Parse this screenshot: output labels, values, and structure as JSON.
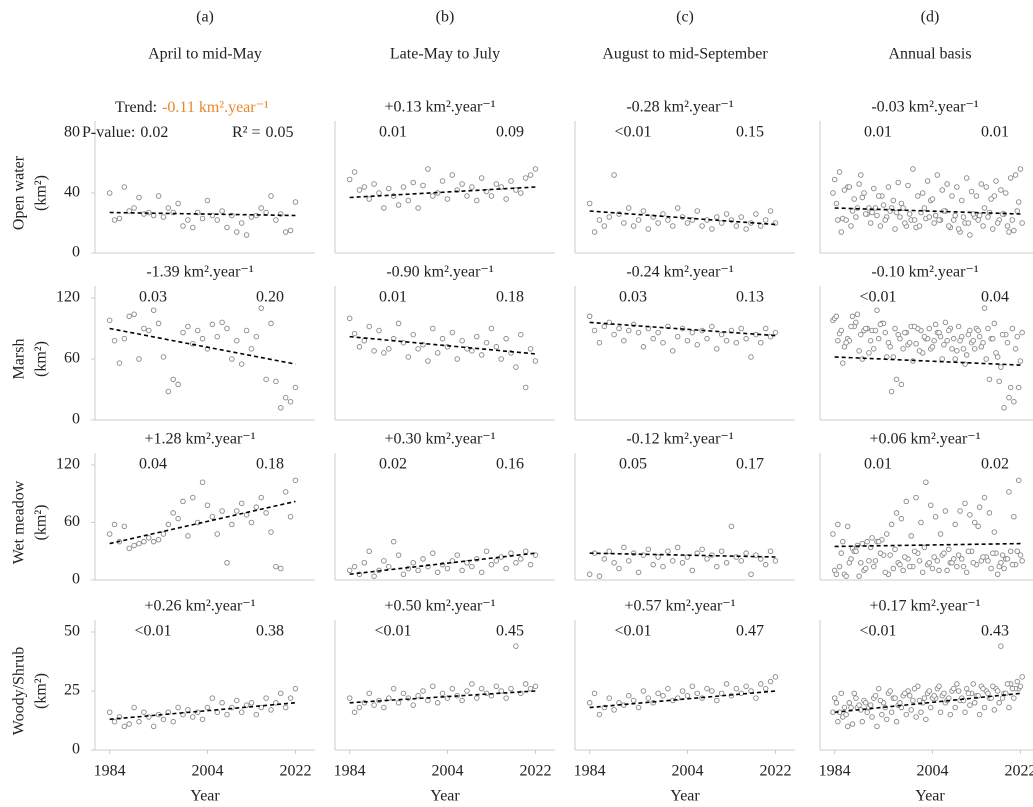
{
  "chart_data": {
    "type": "scatter",
    "x": [
      1984,
      1985,
      1986,
      1987,
      1988,
      1989,
      1990,
      1991,
      1992,
      1993,
      1994,
      1995,
      1996,
      1997,
      1998,
      1999,
      2000,
      2001,
      2002,
      2003,
      2004,
      2005,
      2006,
      2007,
      2008,
      2009,
      2010,
      2011,
      2012,
      2013,
      2014,
      2015,
      2016,
      2017,
      2018,
      2019,
      2020,
      2021,
      2022
    ],
    "xlim": [
      1981,
      2026
    ],
    "xticks": [
      1984,
      2004,
      2022
    ],
    "xlabel": "Year",
    "labels": {
      "trend": "Trend:",
      "p": "P-value:",
      "r2": "R² ="
    },
    "columns": [
      {
        "letter": "(a)",
        "title": "April to mid-May"
      },
      {
        "letter": "(b)",
        "title": "Late-May to July"
      },
      {
        "letter": "(c)",
        "title": "August to mid-September"
      },
      {
        "letter": "(d)",
        "title": "Annual basis"
      }
    ],
    "rows": [
      {
        "label": "Open water",
        "unit": "(km²)",
        "ylim": [
          0,
          80
        ],
        "yticks": [
          0,
          40,
          80
        ]
      },
      {
        "label": "Marsh",
        "unit": "(km²)",
        "ylim": [
          0,
          120
        ],
        "yticks": [
          0,
          60,
          120
        ]
      },
      {
        "label": "Wet meadow",
        "unit": "(km²)",
        "ylim": [
          0,
          120
        ],
        "yticks": [
          0,
          60,
          120
        ]
      },
      {
        "label": "Woody/Shrub",
        "unit": "(km²)",
        "ylim": [
          0,
          50
        ],
        "yticks": [
          0,
          25,
          50
        ]
      }
    ],
    "point_color": "#888888",
    "trend_line_color": "#000000",
    "panels": [
      {
        "trend": "-0.11 km².year⁻¹",
        "trend_color": "#e8872c",
        "p": "0.02",
        "r2": "0.05",
        "trend_line": [
          27,
          25
        ],
        "values": [
          40,
          22,
          23,
          44,
          28,
          30,
          37,
          26,
          27,
          25,
          38,
          24,
          30,
          27,
          33,
          18,
          22,
          17,
          27,
          23,
          35,
          25,
          22,
          28,
          17,
          25,
          14,
          20,
          12,
          24,
          25,
          30,
          27,
          38,
          22,
          26,
          14,
          15,
          34
        ]
      },
      {
        "trend": "+0.13 km².year⁻¹",
        "trend_color": "#2ea24a",
        "p": "0.01",
        "r2": "0.09",
        "trend_line": [
          37,
          44
        ],
        "values": [
          49,
          54,
          42,
          44,
          36,
          46,
          40,
          30,
          43,
          38,
          32,
          44,
          35,
          47,
          30,
          45,
          56,
          38,
          40,
          48,
          36,
          52,
          42,
          46,
          38,
          44,
          35,
          50,
          41,
          38,
          46,
          44,
          36,
          48,
          42,
          40,
          50,
          52,
          56
        ]
      },
      {
        "trend": "-0.28 km².year⁻¹",
        "trend_color": "#e8872c",
        "p": "<0.01",
        "r2": "0.15",
        "trend_line": [
          28,
          19
        ],
        "values": [
          33,
          14,
          22,
          18,
          24,
          52,
          26,
          20,
          30,
          18,
          22,
          28,
          16,
          24,
          20,
          26,
          22,
          18,
          30,
          24,
          20,
          22,
          28,
          18,
          22,
          16,
          24,
          20,
          26,
          22,
          18,
          24,
          16,
          20,
          26,
          18,
          22,
          28,
          20
        ]
      },
      {
        "trend": "-0.03 km².year⁻¹",
        "trend_color": "#e8872c",
        "p": "0.01",
        "r2": "0.01",
        "trend_line": [
          30,
          26
        ]
      },
      {
        "trend": "-1.39 km².year⁻¹",
        "trend_color": "#e8872c",
        "p": "0.03",
        "r2": "0.20",
        "trend_line": [
          90,
          55
        ],
        "values": [
          98,
          78,
          56,
          80,
          102,
          104,
          60,
          90,
          88,
          108,
          95,
          62,
          28,
          40,
          35,
          86,
          92,
          75,
          88,
          80,
          70,
          94,
          82,
          96,
          90,
          60,
          78,
          55,
          88,
          70,
          82,
          110,
          40,
          95,
          38,
          12,
          22,
          18,
          32
        ]
      },
      {
        "trend": "-0.90 km².year⁻¹",
        "trend_color": "#e8872c",
        "p": "0.01",
        "r2": "0.18",
        "trend_line": [
          82,
          65
        ],
        "values": [
          100,
          85,
          72,
          78,
          92,
          68,
          88,
          66,
          70,
          80,
          95,
          76,
          62,
          84,
          70,
          74,
          58,
          90,
          66,
          80,
          72,
          86,
          60,
          78,
          70,
          68,
          82,
          64,
          76,
          90,
          72,
          60,
          80,
          66,
          52,
          84,
          32,
          70,
          58
        ]
      },
      {
        "trend": "-0.24 km².year⁻¹",
        "trend_color": "#e8872c",
        "p": "0.03",
        "r2": "0.13",
        "trend_line": [
          96,
          83
        ],
        "values": [
          102,
          88,
          76,
          92,
          96,
          84,
          90,
          78,
          88,
          94,
          86,
          72,
          90,
          80,
          86,
          76,
          92,
          68,
          82,
          90,
          78,
          86,
          74,
          88,
          80,
          92,
          70,
          84,
          78,
          88,
          76,
          90,
          80,
          62,
          84,
          76,
          90,
          82,
          86
        ]
      },
      {
        "trend": "-0.10 km².year⁻¹",
        "trend_color": "#e8872c",
        "p": "<0.01",
        "r2": "0.04",
        "trend_line": [
          62,
          54
        ]
      },
      {
        "trend": "+1.28 km².year⁻¹",
        "trend_color": "#2ea24a",
        "p": "0.04",
        "r2": "0.18",
        "trend_line": [
          38,
          82
        ],
        "values": [
          48,
          58,
          40,
          56,
          33,
          36,
          38,
          40,
          44,
          40,
          42,
          48,
          58,
          70,
          64,
          82,
          46,
          86,
          60,
          102,
          78,
          66,
          48,
          72,
          18,
          58,
          72,
          80,
          68,
          60,
          76,
          86,
          70,
          50,
          14,
          12,
          92,
          66,
          104
        ]
      },
      {
        "trend": "+0.30 km².year⁻¹",
        "trend_color": "#2ea24a",
        "p": "0.02",
        "r2": "0.16",
        "trend_line": [
          6,
          28
        ],
        "values": [
          10,
          14,
          6,
          18,
          30,
          4,
          10,
          20,
          14,
          40,
          26,
          6,
          12,
          18,
          10,
          22,
          14,
          28,
          8,
          16,
          12,
          20,
          26,
          10,
          18,
          14,
          22,
          8,
          30,
          16,
          20,
          24,
          12,
          28,
          18,
          22,
          30,
          16,
          26
        ]
      },
      {
        "trend": "-0.12 km².year⁻¹",
        "trend_color": "#e8872c",
        "p": "0.05",
        "r2": "0.17",
        "trend_line": [
          28,
          24
        ],
        "values": [
          6,
          28,
          4,
          22,
          30,
          18,
          12,
          34,
          20,
          28,
          8,
          26,
          32,
          16,
          24,
          14,
          30,
          20,
          34,
          18,
          24,
          10,
          28,
          32,
          22,
          26,
          14,
          30,
          18,
          56,
          24,
          20,
          28,
          6,
          26,
          22,
          16,
          30,
          20
        ]
      },
      {
        "trend": "+0.06 km².year⁻¹",
        "trend_color": "#2ea24a",
        "p": "0.01",
        "r2": "0.02",
        "trend_line": [
          35,
          38
        ]
      },
      {
        "trend": "+0.26 km².year⁻¹",
        "trend_color": "#2ea24a",
        "p": "<0.01",
        "r2": "0.38",
        "trend_line": [
          13,
          20
        ],
        "values": [
          16,
          12,
          14,
          10,
          11,
          18,
          12,
          16,
          14,
          10,
          15,
          13,
          16,
          12,
          18,
          15,
          17,
          14,
          16,
          13,
          18,
          22,
          16,
          20,
          15,
          18,
          21,
          16,
          19,
          20,
          15,
          18,
          22,
          17,
          20,
          24,
          18,
          22,
          26
        ]
      },
      {
        "trend": "+0.50 km².year⁻¹",
        "trend_color": "#2ea24a",
        "p": "<0.01",
        "r2": "0.45",
        "trend_line": [
          20,
          25
        ],
        "values": [
          22,
          16,
          18,
          20,
          24,
          19,
          21,
          18,
          22,
          26,
          20,
          24,
          22,
          19,
          23,
          25,
          21,
          27,
          20,
          24,
          22,
          26,
          23,
          21,
          25,
          28,
          22,
          26,
          24,
          23,
          27,
          25,
          22,
          26,
          44,
          24,
          28,
          26,
          27
        ]
      },
      {
        "trend": "+0.57 km².year⁻¹",
        "trend_color": "#2ea24a",
        "p": "<0.01",
        "r2": "0.47",
        "trend_line": [
          18,
          25
        ],
        "values": [
          20,
          24,
          15,
          18,
          22,
          17,
          20,
          19,
          23,
          21,
          18,
          25,
          22,
          20,
          24,
          23,
          26,
          21,
          22,
          25,
          23,
          27,
          24,
          22,
          26,
          25,
          21,
          24,
          28,
          23,
          26,
          24,
          27,
          25,
          22,
          28,
          26,
          29,
          31
        ]
      },
      {
        "trend": "+0.17 km².year⁻¹",
        "trend_color": "#2ea24a",
        "p": "<0.01",
        "r2": "0.43",
        "trend_line": [
          16,
          24
        ]
      }
    ]
  }
}
